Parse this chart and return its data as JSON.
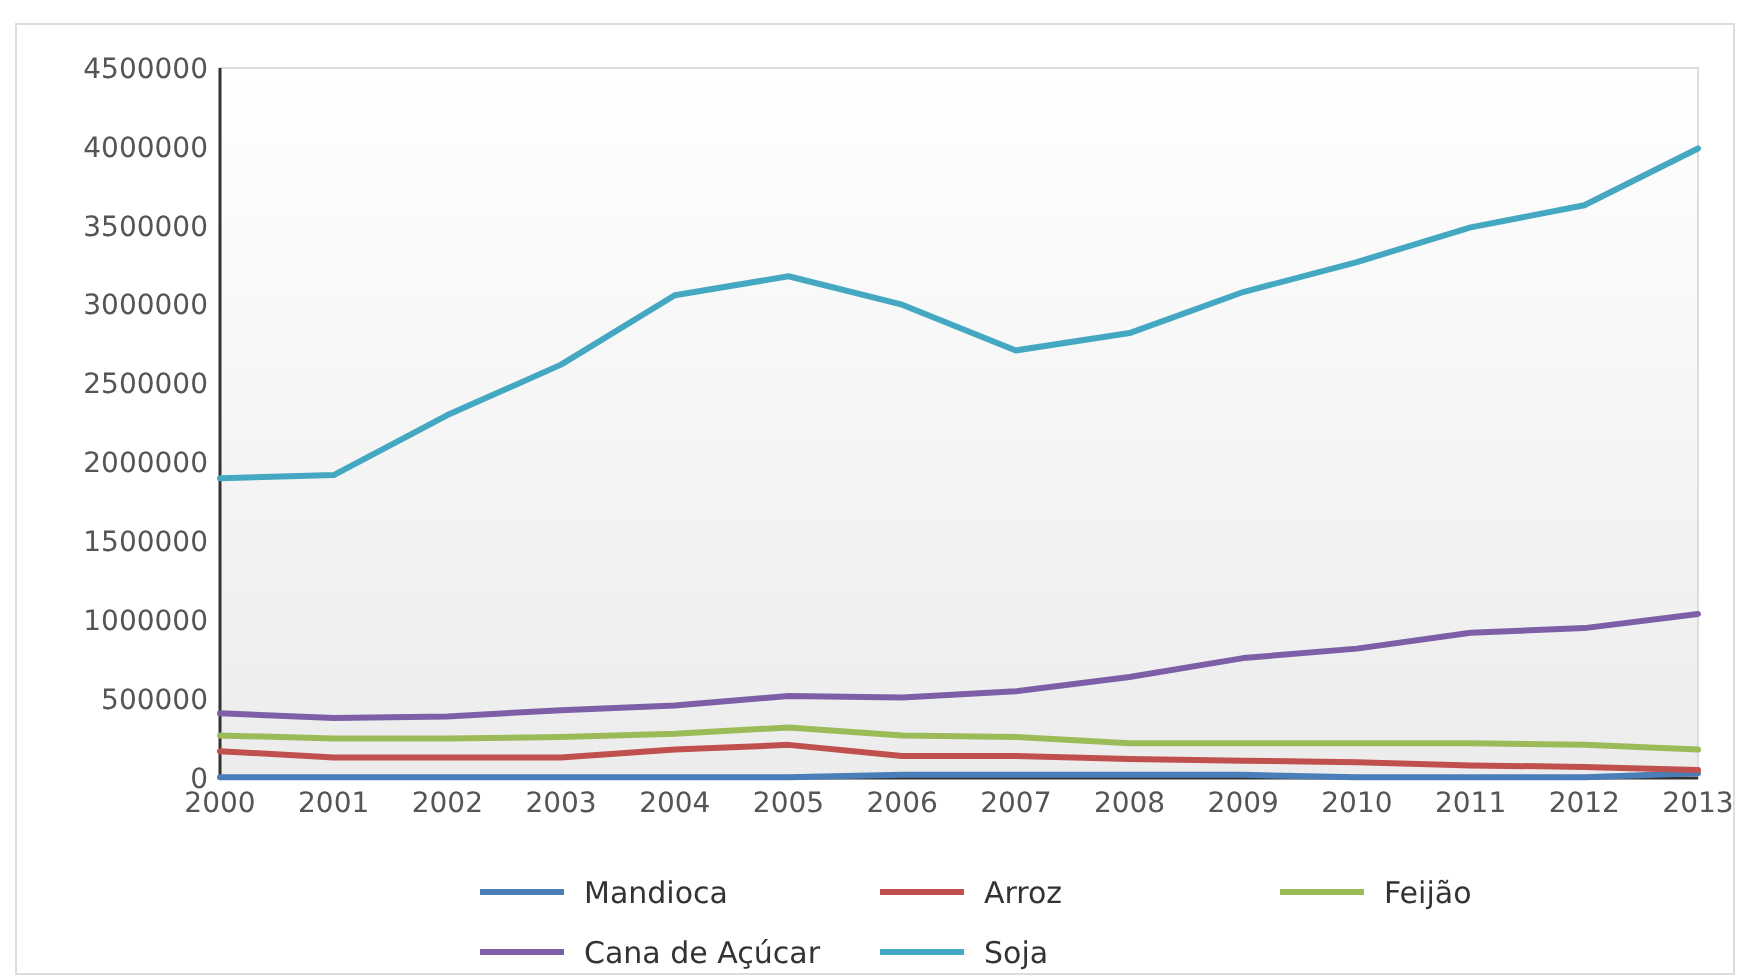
{
  "chart_data": {
    "type": "line",
    "x": [
      2000,
      2001,
      2002,
      2003,
      2004,
      2005,
      2006,
      2007,
      2008,
      2009,
      2010,
      2011,
      2012,
      2013
    ],
    "xlim": [
      2000,
      2013
    ],
    "xticks": [
      2000,
      2001,
      2002,
      2003,
      2004,
      2005,
      2006,
      2007,
      2008,
      2009,
      2010,
      2011,
      2012,
      2013
    ],
    "ylim": [
      0,
      4500000
    ],
    "yticks": [
      0,
      500000,
      1000000,
      1500000,
      2000000,
      2500000,
      3000000,
      3500000,
      4000000,
      4500000
    ],
    "grid": false,
    "legend": "bottom",
    "marker": "none",
    "line_style": "solid",
    "series": [
      {
        "name": "Mandioca",
        "color": "#4a7eb8",
        "values": [
          5000,
          5000,
          5000,
          5000,
          5000,
          5000,
          20000,
          20000,
          20000,
          20000,
          5000,
          5000,
          5000,
          30000
        ]
      },
      {
        "name": "Arroz",
        "color": "#c0504d",
        "values": [
          170000,
          130000,
          130000,
          130000,
          180000,
          210000,
          140000,
          140000,
          120000,
          110000,
          100000,
          80000,
          70000,
          50000
        ]
      },
      {
        "name": "Feijão",
        "color": "#9bbb59",
        "values": [
          270000,
          250000,
          250000,
          260000,
          280000,
          320000,
          270000,
          260000,
          220000,
          220000,
          220000,
          220000,
          210000,
          180000
        ]
      },
      {
        "name": "Cana de Açúcar",
        "color": "#7d5fa8",
        "values": [
          410000,
          380000,
          390000,
          430000,
          460000,
          520000,
          510000,
          550000,
          640000,
          760000,
          820000,
          920000,
          950000,
          1040000
        ]
      },
      {
        "name": "Soja",
        "color": "#45a8c2",
        "values": [
          1900000,
          1920000,
          2300000,
          2620000,
          3060000,
          3180000,
          3000000,
          2710000,
          2820000,
          3080000,
          3270000,
          3490000,
          3630000,
          3990000
        ]
      }
    ]
  }
}
